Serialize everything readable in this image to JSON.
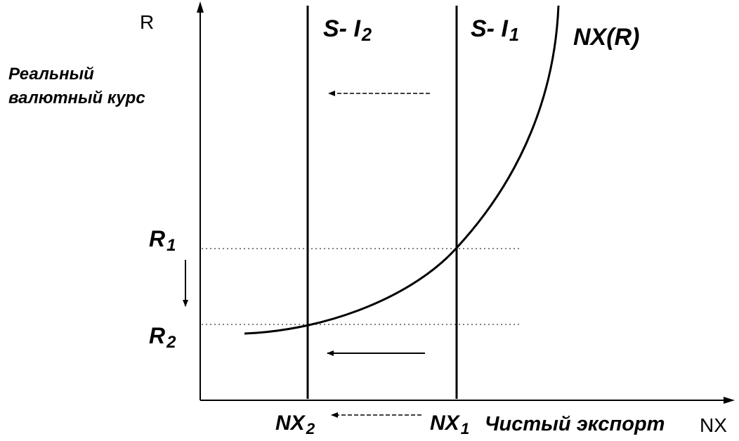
{
  "labels": {
    "y_axis": "R",
    "x_axis": "NX",
    "y_desc_line1": "Реальный",
    "y_desc_line2": "валютный курс",
    "x_desc": "Чистый экспорт",
    "curve": "NX(R)",
    "line1_main": "S- I",
    "line1_sub": "1",
    "line2_main": "S- I",
    "line2_sub": "2",
    "r1_main": "R",
    "r1_sub": "1",
    "r2_main": "R",
    "r2_sub": "2",
    "nx1_main": "NX",
    "nx1_sub": "1",
    "nx2_main": "NX",
    "nx2_sub": "2"
  },
  "colors": {
    "ink": "#000000",
    "background": "#ffffff"
  }
}
